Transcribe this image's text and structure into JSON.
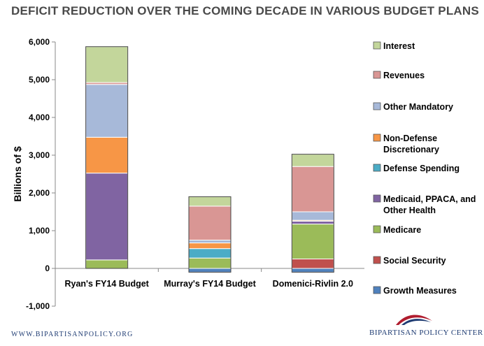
{
  "header": {
    "title": "DEFICIT REDUCTION OVER THE COMING DECADE IN VARIOUS BUDGET PLANS"
  },
  "footer": {
    "url": "WWW.BIPARTISANPOLICY.ORG",
    "logo": "BIPARTISAN POLICY CENTER"
  },
  "chart_data": {
    "type": "bar",
    "stacked": true,
    "title": "DEFICIT REDUCTION OVER THE COMING DECADE IN VARIOUS BUDGET PLANS",
    "xlabel": "",
    "ylabel": "Billions of $",
    "ylim": [
      -1000,
      6000
    ],
    "yticks": [
      -1000,
      0,
      1000,
      2000,
      3000,
      4000,
      5000,
      6000
    ],
    "ytick_labels": [
      "-1,000",
      "0",
      "1,000",
      "2,000",
      "3,000",
      "4,000",
      "5,000",
      "6,000"
    ],
    "grid": false,
    "legend": "right",
    "categories": [
      "Ryan's FY14 Budget",
      "Murray's FY14 Budget",
      "Domenici-Rivlin 2.0"
    ],
    "series": [
      {
        "name": "Growth Measures",
        "legend_lines": [
          "Growth Measures"
        ],
        "color": "#4f81bd",
        "values": [
          0,
          -100,
          -100
        ]
      },
      {
        "name": "Social Security",
        "legend_lines": [
          "Social Security"
        ],
        "color": "#c0504d",
        "values": [
          0,
          0,
          250
        ]
      },
      {
        "name": "Medicare",
        "legend_lines": [
          "Medicare"
        ],
        "color": "#9bbb59",
        "values": [
          225,
          275,
          925
        ]
      },
      {
        "name": "Medicaid, PPACA, and Other Health",
        "legend_lines": [
          "Medicaid, PPACA, and",
          "Other Health"
        ],
        "color": "#8064a2",
        "values": [
          2300,
          0,
          75
        ]
      },
      {
        "name": "Defense Spending",
        "legend_lines": [
          "Defense Spending"
        ],
        "color": "#4bacc6",
        "values": [
          0,
          250,
          0
        ]
      },
      {
        "name": "Non-Defense Discretionary",
        "legend_lines": [
          "Non-Defense",
          "Discretionary"
        ],
        "color": "#f79646",
        "values": [
          950,
          150,
          25
        ]
      },
      {
        "name": "Other Mandatory",
        "legend_lines": [
          "Other Mandatory"
        ],
        "color": "#a7b9d9",
        "values": [
          1400,
          75,
          225
        ]
      },
      {
        "name": "Revenues",
        "legend_lines": [
          "Revenues"
        ],
        "color": "#d99694",
        "values": [
          50,
          900,
          1200
        ]
      },
      {
        "name": "Interest",
        "legend_lines": [
          "Interest"
        ],
        "color": "#c3d69b",
        "values": [
          950,
          250,
          325
        ]
      }
    ]
  }
}
